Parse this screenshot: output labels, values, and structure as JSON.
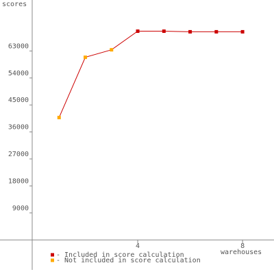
{
  "chart_data": {
    "type": "line",
    "y_label": "scores",
    "x_label": "warehouses",
    "x": [
      1,
      2,
      3,
      4,
      5,
      6,
      7,
      8
    ],
    "line_color": "#cc0000",
    "series": [
      {
        "name": "- Included in score calculation",
        "color": "#cc0000",
        "values": [
          null,
          null,
          null,
          69600,
          69600,
          69400,
          69400,
          69400
        ]
      },
      {
        "name": "- Not included in score calculation",
        "color": "#ffaa00",
        "values": [
          40800,
          60900,
          63400,
          null,
          null,
          null,
          null,
          null
        ]
      }
    ],
    "xlim": [
      0,
      9.2
    ],
    "xticks": [
      4,
      8
    ],
    "ylim": [
      -10000,
      80000
    ],
    "yticks": [
      9000,
      18000,
      27000,
      36000,
      45000,
      54000,
      63000
    ]
  }
}
